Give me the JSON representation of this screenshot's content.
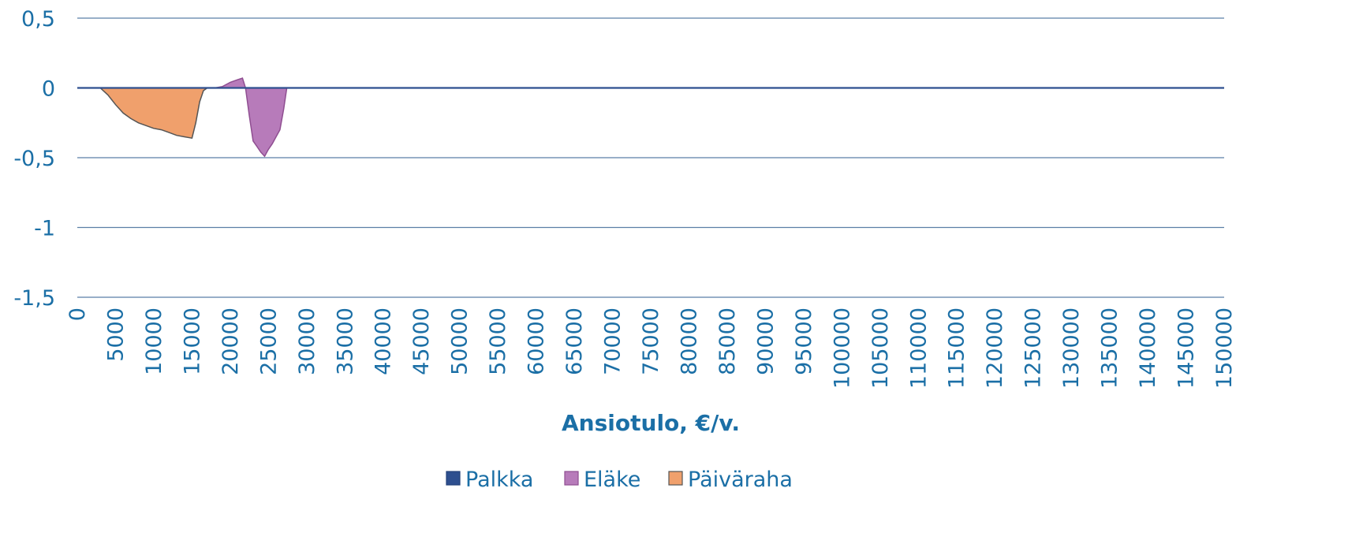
{
  "chart_data": {
    "type": "area",
    "title": "",
    "xlabel": "Ansiotulo, €/v.",
    "ylabel": "",
    "xlim": [
      0,
      150000
    ],
    "ylim": [
      -1.5,
      0.5
    ],
    "grid": true,
    "legend_position": "bottom",
    "y_ticks": [
      "0,5",
      "0",
      "-0,5",
      "-1",
      "-1,5"
    ],
    "y_tick_values": [
      0.5,
      0,
      -0.5,
      -1,
      -1.5
    ],
    "x_ticks": [
      "0",
      "5000",
      "10000",
      "15000",
      "20000",
      "25000",
      "30000",
      "35000",
      "40000",
      "45000",
      "50000",
      "55000",
      "60000",
      "65000",
      "70000",
      "75000",
      "80000",
      "85000",
      "90000",
      "95000",
      "100000",
      "105000",
      "110000",
      "115000",
      "120000",
      "125000",
      "130000",
      "135000",
      "140000",
      "145000",
      "150000"
    ],
    "series": [
      {
        "name": "Palkka",
        "color": "#2e4f8f",
        "x": [
          0,
          20000,
          25000,
          30000,
          35000,
          40000,
          50000,
          60000,
          70000,
          80000,
          90000,
          100000,
          110000,
          120000,
          130000,
          140000,
          150000
        ],
        "values": [
          0,
          0,
          0,
          0,
          0,
          0,
          0,
          0,
          0,
          0,
          0,
          0,
          0,
          0,
          0,
          0,
          0
        ]
      },
      {
        "name": "Eläke",
        "color": "#b77bba",
        "x": [
          18000,
          19000,
          20000,
          21000,
          21600,
          22000,
          22500,
          23000,
          23500,
          24000,
          24500,
          25000,
          25500,
          26000,
          26500,
          27000,
          27400
        ],
        "values": [
          0,
          0.01,
          0.04,
          0.06,
          0.07,
          0,
          -0.2,
          -0.38,
          -0.42,
          -0.46,
          -0.49,
          -0.44,
          -0.4,
          -0.35,
          -0.3,
          -0.15,
          0
        ]
      },
      {
        "name": "Päiväraha",
        "color": "#f0a06c",
        "x": [
          3000,
          4000,
          5000,
          6000,
          7000,
          8000,
          9000,
          10000,
          11000,
          12000,
          13000,
          14000,
          15000,
          15500,
          16000,
          16500,
          17000
        ],
        "values": [
          0,
          -0.05,
          -0.12,
          -0.18,
          -0.22,
          -0.25,
          -0.27,
          -0.29,
          -0.3,
          -0.32,
          -0.34,
          -0.35,
          -0.36,
          -0.25,
          -0.1,
          -0.02,
          0
        ]
      }
    ]
  }
}
